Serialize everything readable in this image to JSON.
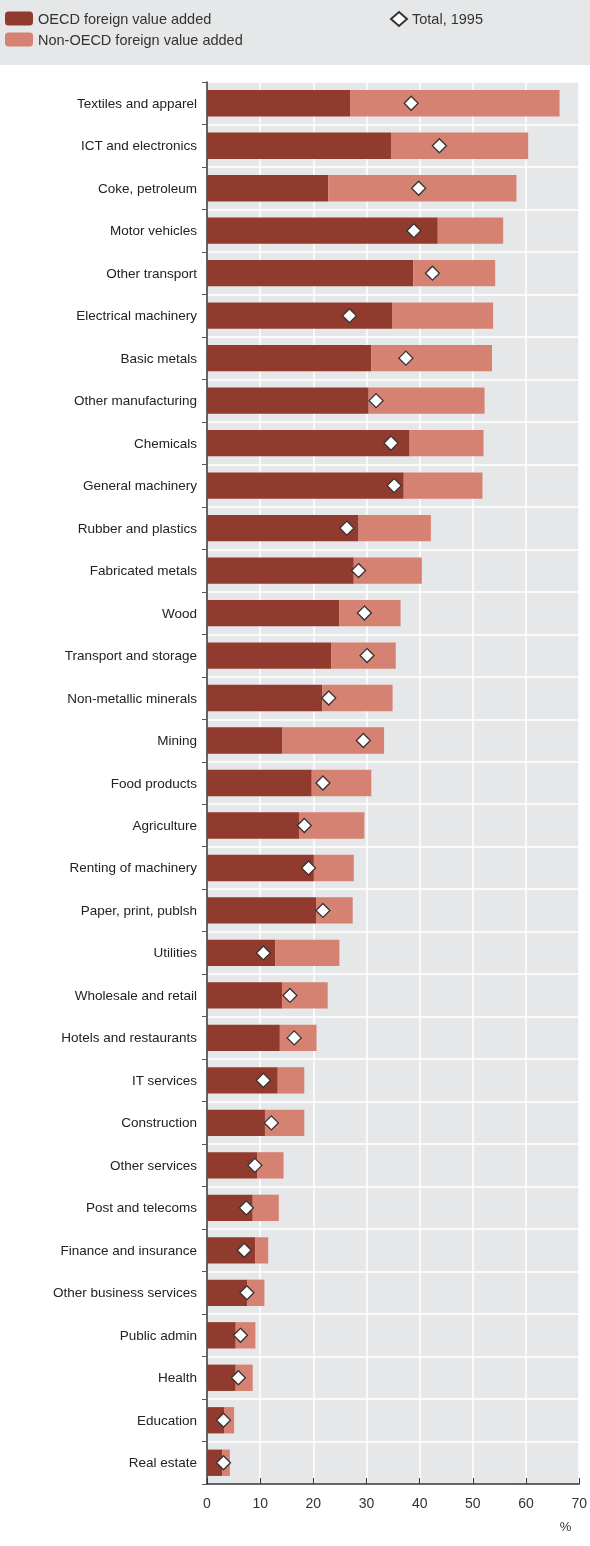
{
  "chart_data": {
    "type": "bar",
    "orientation": "horizontal",
    "stacked": true,
    "xlabel": "%",
    "xlim": [
      0,
      70
    ],
    "xticks": [
      0,
      10,
      20,
      30,
      40,
      50,
      60,
      70
    ],
    "grid": true,
    "legend": "top",
    "marker": "diamond",
    "categories": [
      "Textiles and apparel",
      "ICT and electronics",
      "Coke, petroleum",
      "Motor vehicles",
      "Other transport",
      "Electrical machinery",
      "Basic metals",
      "Other manufacturing",
      "Chemicals",
      "General machinery",
      "Rubber and plastics",
      "Fabricated metals",
      "Wood",
      "Transport and storage",
      "Non-metallic minerals",
      "Mining",
      "Food products",
      "Agriculture",
      "Renting of machinery",
      "Paper, print, publsh",
      "Utilities",
      "Wholesale and retail",
      "Hotels and restaurants",
      "IT services",
      "Construction",
      "Other services",
      "Post and telecoms",
      "Finance and insurance",
      "Other business services",
      "Public admin",
      "Health",
      "Education",
      "Real estate"
    ],
    "series": [
      {
        "name": "OECD foreign value added",
        "color": "#913b2e",
        "values": [
          26.9,
          34.6,
          22.8,
          43.4,
          38.8,
          34.8,
          30.9,
          30.4,
          38.1,
          37.0,
          28.5,
          27.6,
          24.9,
          23.4,
          21.7,
          14.2,
          19.7,
          17.3,
          20.1,
          20.5,
          12.8,
          14.1,
          13.7,
          13.3,
          10.9,
          9.5,
          8.6,
          9.1,
          7.6,
          5.4,
          5.4,
          3.2,
          2.9
        ]
      },
      {
        "name": "Non-OECD foreign value added",
        "color": "#d58272",
        "values": [
          39.4,
          25.8,
          35.4,
          12.3,
          15.4,
          19.0,
          22.7,
          21.8,
          13.9,
          14.8,
          13.6,
          12.8,
          11.5,
          12.1,
          13.2,
          19.1,
          11.2,
          12.3,
          7.5,
          6.9,
          12.1,
          8.6,
          6.9,
          5.0,
          7.4,
          4.9,
          4.9,
          2.4,
          3.2,
          3.7,
          3.2,
          1.9,
          1.4
        ]
      },
      {
        "name": "Total, 1995",
        "type": "scatter",
        "color": "#ffffff",
        "values": [
          38.4,
          43.7,
          39.8,
          38.9,
          42.4,
          26.8,
          37.4,
          31.8,
          34.6,
          35.2,
          26.3,
          28.5,
          29.6,
          30.1,
          22.9,
          29.4,
          21.8,
          18.3,
          19.1,
          21.8,
          10.6,
          15.6,
          16.4,
          10.6,
          12.1,
          9.0,
          7.4,
          7.0,
          7.5,
          6.3,
          5.9,
          3.1,
          3.1
        ]
      }
    ]
  }
}
